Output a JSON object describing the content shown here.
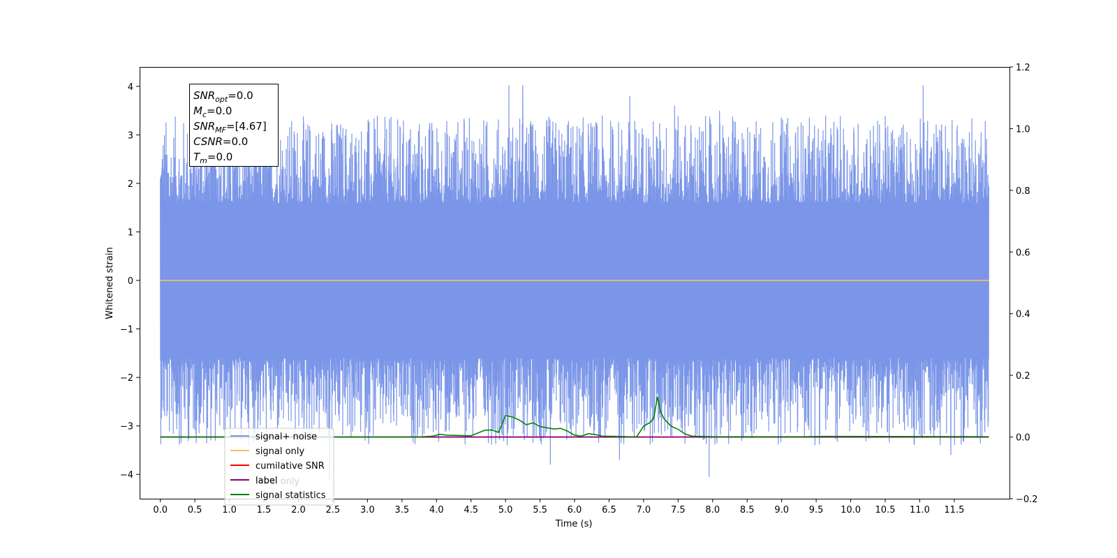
{
  "chart_data": {
    "type": "line",
    "xlabel": "Time (s)",
    "ylabel": "Whitened strain",
    "x_ticks": [
      "0.0",
      "0.5",
      "1.0",
      "1.5",
      "2.0",
      "2.5",
      "3.0",
      "3.5",
      "4.0",
      "4.5",
      "5.0",
      "5.5",
      "6.0",
      "6.5",
      "7.0",
      "7.5",
      "8.0",
      "8.5",
      "9.0",
      "9.5",
      "10.0",
      "10.5",
      "11.0",
      "11.5"
    ],
    "xlim": [
      -0.3,
      12.3
    ],
    "ylim_left": [
      -4.5,
      4.4
    ],
    "ylim_right": [
      -0.2,
      1.2
    ],
    "y_ticks_left": [
      "−4",
      "−3",
      "−2",
      "−1",
      "0",
      "1",
      "2",
      "3",
      "4"
    ],
    "y_ticks_right": [
      "−0.2",
      "0.0",
      "0.2",
      "0.4",
      "0.6",
      "0.8",
      "1.0",
      "1.2"
    ],
    "grid": false,
    "legend_position": "lower-left",
    "annotation": {
      "lines": [
        {
          "main": "SNR",
          "sub": "opt",
          "rest": "=0.0"
        },
        {
          "main": "M",
          "sub": "c",
          "rest": "=0.0"
        },
        {
          "main": "SNR",
          "sub": "MF",
          "rest": "=[4.67]"
        },
        {
          "main": "CSNR",
          "sub": "",
          "rest": "=0.0"
        },
        {
          "main": "T",
          "sub": "m",
          "rest": "=0.0"
        }
      ]
    },
    "series": [
      {
        "name": "signal+ noise",
        "color": "#7b96e8",
        "axis": "left",
        "x_range": [
          0.0,
          12.0
        ],
        "envelope": [
          1.6,
          3.4
        ],
        "spikes": [
          {
            "x": 0.3,
            "y": -3.35
          },
          {
            "x": 1.6,
            "y": 3.55
          },
          {
            "x": 2.45,
            "y": -4.1
          },
          {
            "x": 5.05,
            "y": 4.02
          },
          {
            "x": 5.25,
            "y": 4.02
          },
          {
            "x": 5.65,
            "y": -3.8
          },
          {
            "x": 6.65,
            "y": -3.7
          },
          {
            "x": 6.8,
            "y": 3.8
          },
          {
            "x": 7.45,
            "y": 3.6
          },
          {
            "x": 7.95,
            "y": -4.05
          },
          {
            "x": 8.1,
            "y": 3.5
          },
          {
            "x": 11.05,
            "y": 4.02
          },
          {
            "x": 11.45,
            "y": -3.6
          },
          {
            "x": 11.95,
            "y": 3.28
          }
        ]
      },
      {
        "name": "signal only",
        "color": "#ffbe5c",
        "axis": "left",
        "x": [
          0.0,
          12.0
        ],
        "y": [
          0.0,
          0.0
        ]
      },
      {
        "name": "cumilative SNR",
        "color": "#ff0000",
        "axis": "right",
        "x": [
          0.0,
          12.0
        ],
        "y": [
          0.0,
          0.0
        ]
      },
      {
        "name": "label",
        "color": "#800080",
        "axis": "right",
        "x": [
          0.0,
          12.0
        ],
        "y": [
          0.0,
          0.0
        ]
      },
      {
        "name": "signal statistics",
        "color": "#008000",
        "axis": "right",
        "x": [
          0.0,
          3.5,
          3.8,
          3.95,
          4.05,
          4.15,
          4.3,
          4.5,
          4.6,
          4.7,
          4.8,
          4.9,
          5.0,
          5.1,
          5.2,
          5.3,
          5.4,
          5.5,
          5.6,
          5.7,
          5.8,
          5.9,
          6.0,
          6.1,
          6.2,
          6.3,
          6.4,
          6.6,
          6.8,
          6.9,
          7.0,
          7.1,
          7.15,
          7.2,
          7.25,
          7.3,
          7.4,
          7.5,
          7.6,
          7.7,
          8.0,
          9.3,
          9.6,
          12.0
        ],
        "y": [
          0.0,
          0.0,
          0.001,
          0.003,
          0.009,
          0.006,
          0.005,
          0.004,
          0.013,
          0.022,
          0.023,
          0.015,
          0.07,
          0.065,
          0.055,
          0.04,
          0.046,
          0.034,
          0.03,
          0.026,
          0.028,
          0.019,
          0.006,
          0.003,
          0.011,
          0.008,
          0.003,
          0.002,
          0.001,
          0.001,
          0.035,
          0.048,
          0.065,
          0.13,
          0.08,
          0.058,
          0.035,
          0.025,
          0.01,
          0.003,
          0.001,
          0.001,
          0.002,
          0.001
        ]
      }
    ]
  },
  "legend_overlap_text": "label only"
}
